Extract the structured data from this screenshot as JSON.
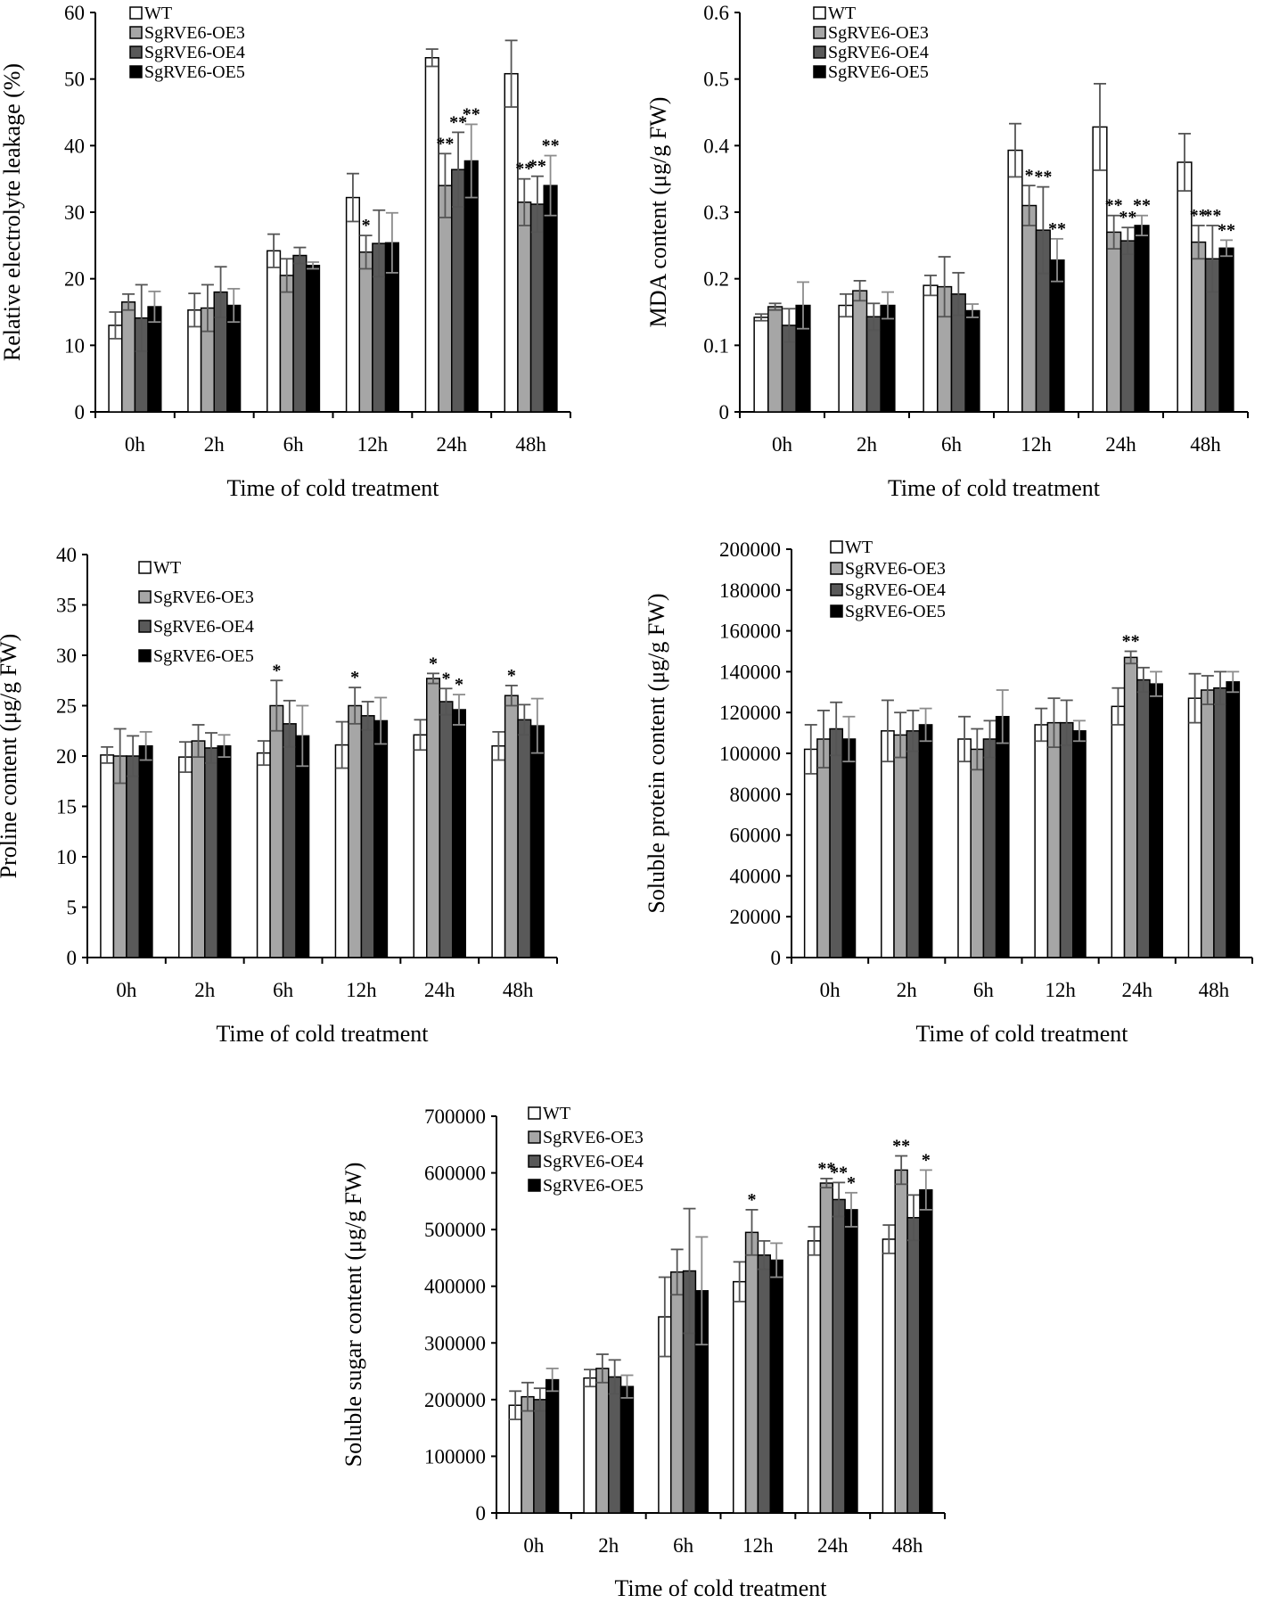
{
  "figure": {
    "legend_entries": [
      "WT",
      "SgRVE6-OE3",
      "SgRVE6-OE4",
      "SgRVE6-OE5"
    ],
    "series_colors": [
      "#ffffff",
      "#a6a6a6",
      "#595959",
      "#000000"
    ]
  },
  "chart_data": [
    {
      "id": "electrolyte",
      "type": "bar",
      "title": "",
      "xlabel": "Time of cold treatment",
      "ylabel": "Relative electrolyte leakage (%)",
      "categories": [
        "0h",
        "2h",
        "6h",
        "12h",
        "24h",
        "48h"
      ],
      "ylim": [
        0,
        60
      ],
      "yticks": [
        "0",
        "10",
        "20",
        "30",
        "40",
        "50",
        "60"
      ],
      "legend_position": "top-left",
      "series": [
        {
          "name": "WT",
          "values": [
            13,
            15.3,
            24.2,
            32.2,
            53.2,
            50.8
          ],
          "errors": [
            2,
            2.5,
            2.5,
            3.6,
            1.3,
            5
          ]
        },
        {
          "name": "SgRVE6-OE3",
          "values": [
            16.5,
            15.6,
            20.5,
            24,
            34,
            31.5
          ],
          "errors": [
            1.2,
            3.5,
            2.5,
            2.5,
            4.8,
            3.5
          ]
        },
        {
          "name": "SgRVE6-OE4",
          "values": [
            14.1,
            18,
            23.5,
            25.3,
            36.4,
            31.2
          ],
          "errors": [
            5,
            3.8,
            1.2,
            5,
            5.6,
            4.2
          ]
        },
        {
          "name": "SgRVE6-OE5",
          "values": [
            15.8,
            16,
            22,
            25.4,
            37.7,
            34
          ],
          "errors": [
            2.3,
            2.5,
            0.5,
            4.5,
            5.5,
            4.5
          ]
        }
      ],
      "significance": [
        [
          "",
          "",
          "",
          "",
          "",
          ""
        ],
        [
          "",
          "",
          "",
          "*",
          "**",
          "**"
        ],
        [
          "",
          "",
          "",
          "",
          "**",
          "**"
        ],
        [
          "",
          "",
          "",
          "",
          "**",
          "**"
        ]
      ]
    },
    {
      "id": "mda",
      "type": "bar",
      "title": "",
      "xlabel": "Time of cold treatment",
      "ylabel": "MDA content (μg/g FW)",
      "categories": [
        "0h",
        "2h",
        "6h",
        "12h",
        "24h",
        "48h"
      ],
      "ylim": [
        0,
        0.6
      ],
      "yticks": [
        "0",
        "0.1",
        "0.2",
        "0.3",
        "0.4",
        "0.5",
        "0.6"
      ],
      "legend_position": "top-left",
      "series": [
        {
          "name": "WT",
          "values": [
            0.142,
            0.16,
            0.19,
            0.393,
            0.428,
            0.375
          ],
          "errors": [
            0.005,
            0.017,
            0.015,
            0.04,
            0.065,
            0.043
          ]
        },
        {
          "name": "SgRVE6-OE3",
          "values": [
            0.158,
            0.182,
            0.188,
            0.31,
            0.27,
            0.255
          ],
          "errors": [
            0.005,
            0.015,
            0.045,
            0.03,
            0.025,
            0.025
          ]
        },
        {
          "name": "SgRVE6-OE4",
          "values": [
            0.13,
            0.143,
            0.177,
            0.273,
            0.257,
            0.23
          ],
          "errors": [
            0.025,
            0.02,
            0.032,
            0.065,
            0.02,
            0.05
          ]
        },
        {
          "name": "SgRVE6-OE5",
          "values": [
            0.16,
            0.16,
            0.152,
            0.228,
            0.28,
            0.246
          ],
          "errors": [
            0.035,
            0.02,
            0.01,
            0.032,
            0.015,
            0.012
          ]
        }
      ],
      "significance": [
        [
          "",
          "",
          "",
          "",
          "",
          ""
        ],
        [
          "",
          "",
          "",
          "*",
          "**",
          "**"
        ],
        [
          "",
          "",
          "",
          "**",
          "**",
          "**"
        ],
        [
          "",
          "",
          "",
          "**",
          "**",
          "**"
        ]
      ]
    },
    {
      "id": "proline",
      "type": "bar",
      "title": "",
      "xlabel": "Time of cold treatment",
      "ylabel": "Proline content (μg/g FW)",
      "categories": [
        "0h",
        "2h",
        "6h",
        "12h",
        "24h",
        "48h"
      ],
      "ylim": [
        0,
        40
      ],
      "yticks": [
        "0",
        "5",
        "10",
        "15",
        "20",
        "25",
        "30",
        "35",
        "40"
      ],
      "legend_position": "top-left",
      "series": [
        {
          "name": "WT",
          "values": [
            20.1,
            19.9,
            20.3,
            21.1,
            22.1,
            21
          ],
          "errors": [
            0.8,
            1.5,
            1.2,
            2.3,
            1.5,
            1.4
          ]
        },
        {
          "name": "SgRVE6-OE3",
          "values": [
            20,
            21.5,
            25,
            25,
            27.7,
            26
          ],
          "errors": [
            2.7,
            1.6,
            2.5,
            1.8,
            0.5,
            1
          ]
        },
        {
          "name": "SgRVE6-OE4",
          "values": [
            20,
            20.8,
            23.2,
            24,
            25.4,
            23.6
          ],
          "errors": [
            2,
            1.5,
            2.3,
            1.4,
            1.3,
            1.5
          ]
        },
        {
          "name": "SgRVE6-OE5",
          "values": [
            21,
            21,
            22,
            23.5,
            24.6,
            23
          ],
          "errors": [
            1.4,
            1.1,
            3,
            2.3,
            1.5,
            2.7
          ]
        }
      ],
      "significance": [
        [
          "",
          "",
          "",
          "",
          "",
          ""
        ],
        [
          "",
          "",
          "*",
          "*",
          "*",
          "*"
        ],
        [
          "",
          "",
          "",
          "",
          "*",
          ""
        ],
        [
          "",
          "",
          "",
          "",
          "*",
          ""
        ]
      ]
    },
    {
      "id": "protein",
      "type": "bar",
      "title": "",
      "xlabel": "Time of cold treatment",
      "ylabel": "Soluble protein content (μg/g FW)",
      "categories": [
        "0h",
        "2h",
        "6h",
        "12h",
        "24h",
        "48h"
      ],
      "ylim": [
        0,
        200000
      ],
      "yticks": [
        "0",
        "20000",
        "40000",
        "60000",
        "80000",
        "100000",
        "120000",
        "140000",
        "160000",
        "180000",
        "200000"
      ],
      "legend_position": "top-left",
      "series": [
        {
          "name": "WT",
          "values": [
            102000,
            111000,
            107000,
            114000,
            123000,
            127000
          ],
          "errors": [
            12000,
            15000,
            11000,
            8000,
            9000,
            12000
          ]
        },
        {
          "name": "SgRVE6-OE3",
          "values": [
            107000,
            109000,
            102000,
            115000,
            147000,
            131000
          ],
          "errors": [
            14000,
            11000,
            10000,
            12000,
            3000,
            7000
          ]
        },
        {
          "name": "SgRVE6-OE4",
          "values": [
            112000,
            111000,
            107000,
            115000,
            136000,
            132000
          ],
          "errors": [
            13000,
            10000,
            9000,
            11000,
            6000,
            8000
          ]
        },
        {
          "name": "SgRVE6-OE5",
          "values": [
            107000,
            114000,
            118000,
            111000,
            134000,
            135000
          ],
          "errors": [
            11000,
            8000,
            13000,
            5000,
            6000,
            5000
          ]
        }
      ],
      "significance": [
        [
          "",
          "",
          "",
          "",
          "",
          ""
        ],
        [
          "",
          "",
          "",
          "",
          "**",
          ""
        ],
        [
          "",
          "",
          "",
          "",
          "",
          ""
        ],
        [
          "",
          "",
          "",
          "",
          "",
          ""
        ]
      ]
    },
    {
      "id": "sugar",
      "type": "bar",
      "title": "",
      "xlabel": "Time of cold treatment",
      "ylabel": "Soluble sugar content (μg/g FW)",
      "categories": [
        "0h",
        "2h",
        "6h",
        "12h",
        "24h",
        "48h"
      ],
      "ylim": [
        0,
        700000
      ],
      "yticks": [
        "0",
        "100000",
        "200000",
        "300000",
        "400000",
        "500000",
        "600000",
        "700000"
      ],
      "legend_position": "top-left",
      "series": [
        {
          "name": "WT",
          "values": [
            190000,
            238000,
            346000,
            408000,
            480000,
            483000
          ],
          "errors": [
            25000,
            15000,
            70000,
            35000,
            25000,
            25000
          ]
        },
        {
          "name": "SgRVE6-OE3",
          "values": [
            205000,
            255000,
            425000,
            495000,
            582000,
            605000
          ],
          "errors": [
            25000,
            25000,
            40000,
            40000,
            8000,
            25000
          ]
        },
        {
          "name": "SgRVE6-OE4",
          "values": [
            200000,
            240000,
            427000,
            455000,
            553000,
            521000
          ],
          "errors": [
            20000,
            30000,
            110000,
            25000,
            30000,
            40000
          ]
        },
        {
          "name": "SgRVE6-OE5",
          "values": [
            235000,
            223000,
            392000,
            446000,
            535000,
            570000
          ],
          "errors": [
            20000,
            20000,
            95000,
            30000,
            30000,
            35000
          ]
        }
      ],
      "significance": [
        [
          "",
          "",
          "",
          "",
          "",
          ""
        ],
        [
          "",
          "",
          "",
          "*",
          "**",
          "**"
        ],
        [
          "",
          "",
          "",
          "",
          "**",
          ""
        ],
        [
          "",
          "",
          "",
          "",
          "*",
          "*"
        ]
      ]
    }
  ]
}
